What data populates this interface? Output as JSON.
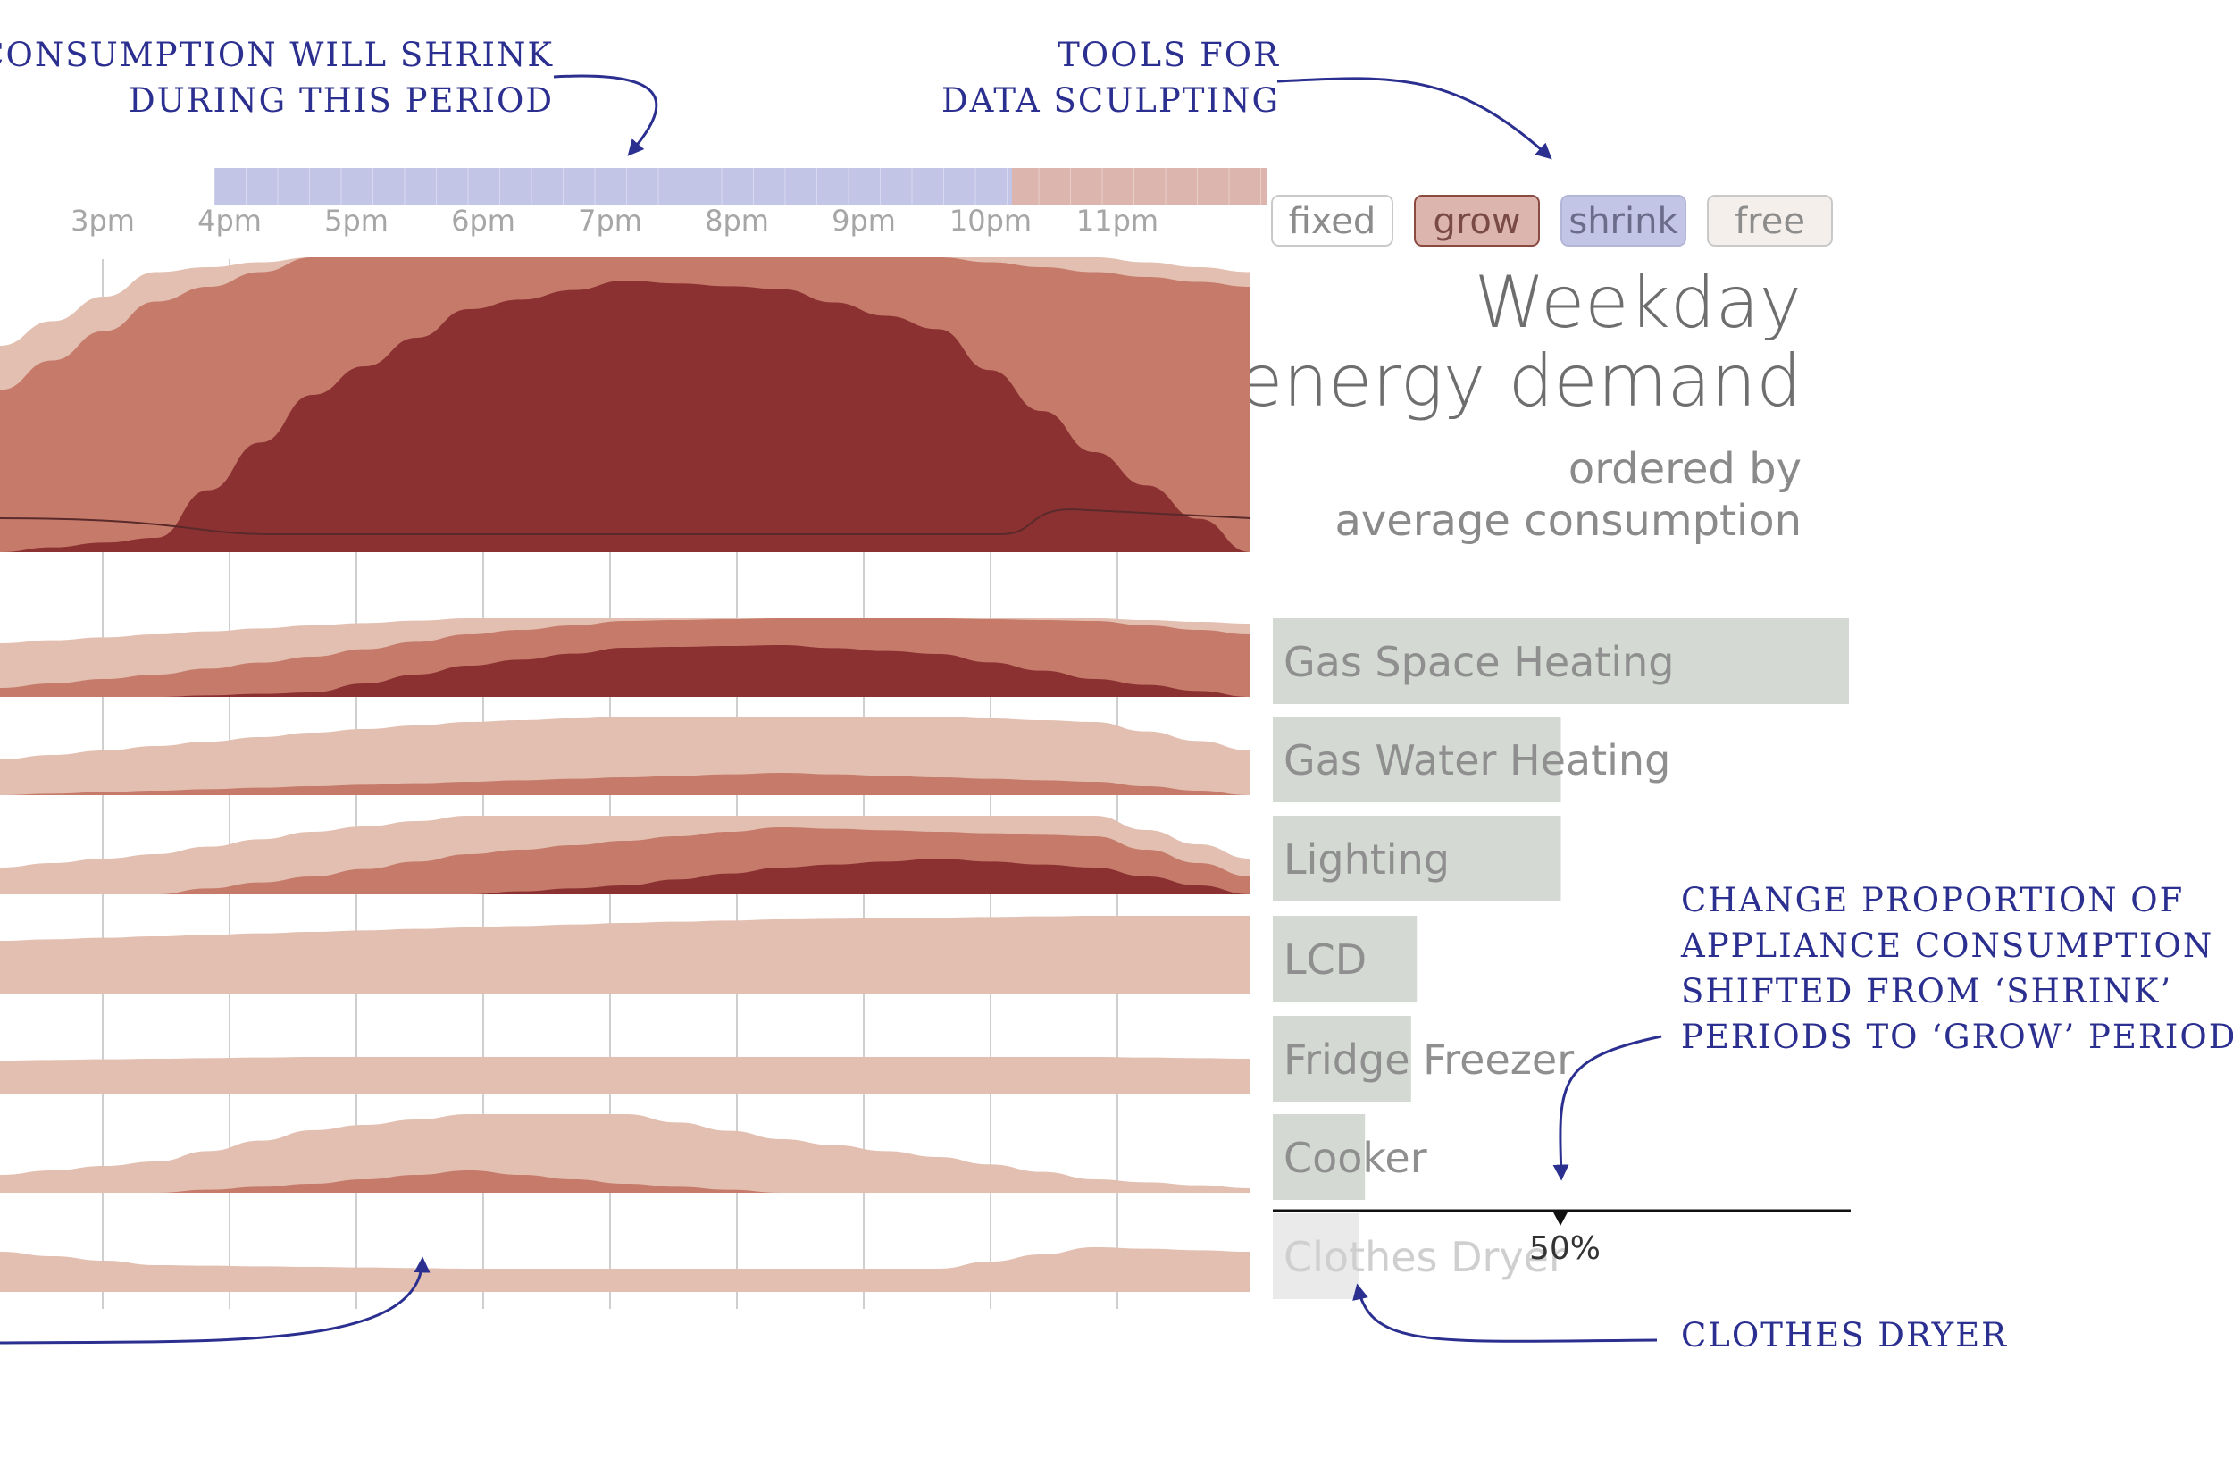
{
  "annotations": {
    "shrink_note": [
      "CONSUMPTION WILL SHRINK",
      "DURING THIS PERIOD"
    ],
    "tools_note": [
      "TOOLS FOR",
      "DATA SCULPTING"
    ],
    "change_note": [
      "CHANGE PROPORTION OF",
      "APPLIANCE CONSUMPTION",
      "SHIFTED FROM ‘SHRINK’",
      "PERIODS TO ‘GROW’ PERIODS"
    ],
    "dryer_note": "CLOTHES DRYER"
  },
  "tools": {
    "fixed_label": "fixed",
    "grow_label": "grow",
    "shrink_label": "shrink",
    "free_label": "free"
  },
  "header": {
    "title_line1": "Weekday",
    "title_line2": "energy demand",
    "subtitle_line1": "ordered by",
    "subtitle_line2": "average consumption"
  },
  "colors": {
    "light": "#e2bfb0",
    "mid": "#c57a6a",
    "dark": "#8b3131",
    "shrink_band": "#c3c5e6",
    "grow_band": "#dcb6ae",
    "bar": "#d4d9d3",
    "bar_faded": "#eaeaea",
    "annotation": "#2b2f8f",
    "gridline": "#cfcfcf"
  },
  "chart_data": {
    "type": "area",
    "x": [
      "3pm",
      "4pm",
      "5pm",
      "6pm",
      "7pm",
      "8pm",
      "9pm",
      "10pm",
      "11pm"
    ],
    "period_bands": [
      {
        "type": "shrink",
        "from": "4pm",
        "to": "10pm"
      },
      {
        "type": "grow",
        "from": "10pm",
        "to": "midnight"
      }
    ],
    "total_profile": {
      "light": [
        0.7,
        0.95,
        1.0,
        1.0,
        1.0,
        1.0,
        1.0,
        1.0,
        0.95
      ],
      "mid": [
        0.55,
        0.85,
        1.0,
        1.0,
        1.0,
        1.0,
        1.0,
        0.95,
        0.9
      ],
      "dark": [
        0.0,
        0.05,
        0.55,
        0.85,
        0.95,
        0.92,
        0.78,
        0.35,
        0.0
      ]
    },
    "appliances": [
      {
        "name": "Gas Space Heating",
        "share": 1.0,
        "faded": false
      },
      {
        "name": "Gas Water Heating",
        "share": 0.5,
        "faded": false
      },
      {
        "name": "Lighting",
        "share": 0.5,
        "faded": false
      },
      {
        "name": "LCD",
        "share": 0.25,
        "faded": false
      },
      {
        "name": "Fridge Freezer",
        "share": 0.24,
        "faded": false
      },
      {
        "name": "Cooker",
        "share": 0.16,
        "faded": false
      },
      {
        "name": "Clothes Dryer",
        "share": 0.15,
        "faded": true
      }
    ],
    "shift_proportion": "50%"
  }
}
